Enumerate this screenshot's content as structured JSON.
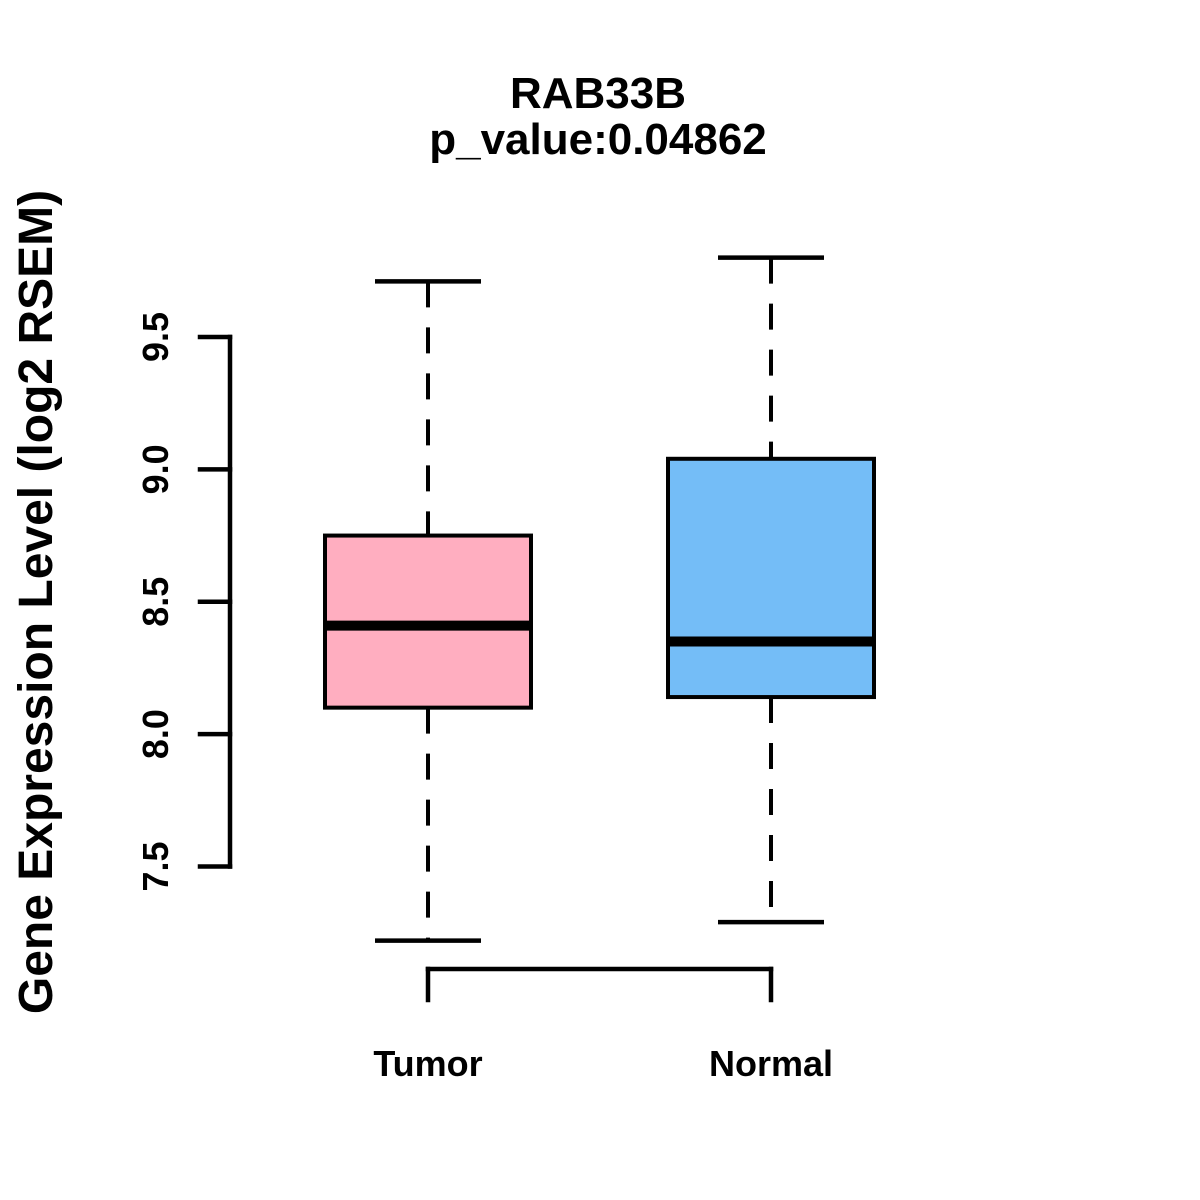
{
  "figure": {
    "title": "RAB33B",
    "subtitle": "p_value:0.04862",
    "ylabel": "Gene Expression Level (log2 RSEM)"
  },
  "colors": {
    "stroke": "#000000",
    "background": "#ffffff",
    "tumor_fill": "#FFAEC0",
    "normal_fill": "#74BDF7"
  },
  "chart_data": {
    "type": "boxplot",
    "title": "RAB33B",
    "subtitle": "p_value:0.04862",
    "ylabel": "Gene Expression Level (log2 RSEM)",
    "xlabel": "",
    "categories": [
      "Tumor",
      "Normal"
    ],
    "yticks": [
      7.5,
      8.0,
      8.5,
      9.0,
      9.5
    ],
    "ylim": [
      7.5,
      9.5
    ],
    "grid": false,
    "legend_position": "none",
    "whisker_style": "dashed",
    "series": [
      {
        "name": "Tumor",
        "lower_whisker": 7.22,
        "q1": 8.1,
        "median": 8.41,
        "q3": 8.75,
        "upper_whisker": 9.71,
        "fill": "#FFAEC0"
      },
      {
        "name": "Normal",
        "lower_whisker": 7.29,
        "q1": 8.14,
        "median": 8.35,
        "q3": 9.04,
        "upper_whisker": 9.8,
        "fill": "#74BDF7"
      }
    ]
  }
}
